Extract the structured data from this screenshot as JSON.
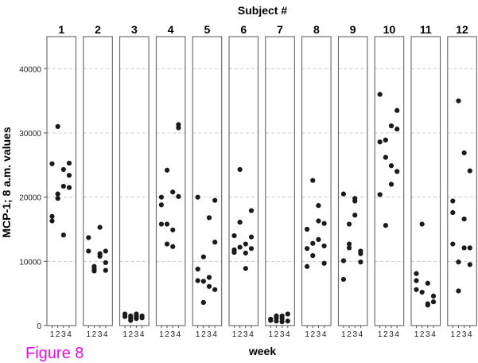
{
  "caption": "Figure 8",
  "chart_data": {
    "type": "scatter",
    "title": "Subject #",
    "xlabel": "week",
    "ylabel": "MCP-1; 8 a.m. values",
    "ylim": [
      0,
      45000
    ],
    "yticks": [
      0,
      10000,
      20000,
      30000,
      40000
    ],
    "ytick_labels": [
      "0",
      "10000",
      "20000",
      "30000",
      "40000"
    ],
    "xticks": [
      1,
      2,
      3,
      4
    ],
    "xtick_labels": [
      "1",
      "2",
      "3",
      "4"
    ],
    "grid": true,
    "facet_title": "Subject #",
    "panels": [
      {
        "name": "1",
        "points": [
          [
            1,
            25200
          ],
          [
            1,
            17000
          ],
          [
            1,
            16300
          ],
          [
            2,
            31000
          ],
          [
            2,
            20500
          ],
          [
            2,
            19800
          ],
          [
            3,
            24300
          ],
          [
            3,
            21700
          ],
          [
            3,
            14100
          ],
          [
            4,
            25300
          ],
          [
            4,
            23400
          ],
          [
            4,
            21500
          ]
        ]
      },
      {
        "name": "2",
        "points": [
          [
            1,
            13700
          ],
          [
            1,
            11600
          ],
          [
            2,
            9200
          ],
          [
            2,
            8800
          ],
          [
            2,
            8500
          ],
          [
            3,
            15300
          ],
          [
            3,
            11200
          ],
          [
            3,
            10800
          ],
          [
            4,
            11600
          ],
          [
            4,
            9800
          ],
          [
            4,
            8600
          ]
        ]
      },
      {
        "name": "3",
        "points": [
          [
            1,
            1800
          ],
          [
            1,
            1400
          ],
          [
            2,
            1200
          ],
          [
            2,
            800
          ],
          [
            2,
            1500
          ],
          [
            3,
            1800
          ],
          [
            3,
            1400
          ],
          [
            3,
            1100
          ],
          [
            4,
            1500
          ],
          [
            4,
            1200
          ]
        ]
      },
      {
        "name": "4",
        "points": [
          [
            1,
            20000
          ],
          [
            1,
            18800
          ],
          [
            1,
            15800
          ],
          [
            2,
            24200
          ],
          [
            2,
            15800
          ],
          [
            2,
            12700
          ],
          [
            3,
            20800
          ],
          [
            3,
            14900
          ],
          [
            3,
            12300
          ],
          [
            4,
            31300
          ],
          [
            4,
            30800
          ],
          [
            4,
            20100
          ]
        ]
      },
      {
        "name": "5",
        "points": [
          [
            1,
            20000
          ],
          [
            1,
            8800
          ],
          [
            1,
            7000
          ],
          [
            2,
            10700
          ],
          [
            2,
            6900
          ],
          [
            2,
            3600
          ],
          [
            3,
            16800
          ],
          [
            3,
            7500
          ],
          [
            3,
            6100
          ],
          [
            4,
            19500
          ],
          [
            4,
            13000
          ],
          [
            4,
            5600
          ]
        ]
      },
      {
        "name": "6",
        "points": [
          [
            1,
            14000
          ],
          [
            1,
            11800
          ],
          [
            1,
            11400
          ],
          [
            2,
            24300
          ],
          [
            2,
            16100
          ],
          [
            2,
            12200
          ],
          [
            3,
            12700
          ],
          [
            3,
            11300
          ],
          [
            3,
            8900
          ],
          [
            4,
            17900
          ],
          [
            4,
            13800
          ],
          [
            4,
            12000
          ]
        ]
      },
      {
        "name": "7",
        "points": [
          [
            1,
            1000
          ],
          [
            1,
            800
          ],
          [
            2,
            1200
          ],
          [
            2,
            700
          ],
          [
            2,
            1500
          ],
          [
            3,
            1500
          ],
          [
            3,
            1100
          ],
          [
            3,
            600
          ],
          [
            4,
            1800
          ],
          [
            4,
            700
          ]
        ]
      },
      {
        "name": "8",
        "points": [
          [
            1,
            15000
          ],
          [
            1,
            12000
          ],
          [
            1,
            9200
          ],
          [
            2,
            22600
          ],
          [
            2,
            12800
          ],
          [
            2,
            10900
          ],
          [
            3,
            18700
          ],
          [
            3,
            16300
          ],
          [
            3,
            13400
          ],
          [
            4,
            15900
          ],
          [
            4,
            12400
          ],
          [
            4,
            9700
          ]
        ]
      },
      {
        "name": "9",
        "points": [
          [
            1,
            20500
          ],
          [
            1,
            10100
          ],
          [
            1,
            7200
          ],
          [
            2,
            15800
          ],
          [
            2,
            12700
          ],
          [
            2,
            12100
          ],
          [
            3,
            19800
          ],
          [
            3,
            19400
          ],
          [
            3,
            17200
          ],
          [
            4,
            11600
          ],
          [
            4,
            11200
          ],
          [
            4,
            9900
          ]
        ]
      },
      {
        "name": "10",
        "points": [
          [
            1,
            36000
          ],
          [
            1,
            28600
          ],
          [
            1,
            20400
          ],
          [
            2,
            28900
          ],
          [
            2,
            26200
          ],
          [
            2,
            15600
          ],
          [
            3,
            31100
          ],
          [
            3,
            24900
          ],
          [
            3,
            22000
          ],
          [
            4,
            33500
          ],
          [
            4,
            30600
          ],
          [
            4,
            24000
          ]
        ]
      },
      {
        "name": "11",
        "points": [
          [
            1,
            8100
          ],
          [
            1,
            7000
          ],
          [
            1,
            5600
          ],
          [
            2,
            15800
          ],
          [
            2,
            5200
          ],
          [
            3,
            6600
          ],
          [
            3,
            3200
          ],
          [
            3,
            3400
          ],
          [
            4,
            4600
          ],
          [
            4,
            3700
          ]
        ]
      },
      {
        "name": "12",
        "points": [
          [
            1,
            19400
          ],
          [
            1,
            17600
          ],
          [
            1,
            12700
          ],
          [
            2,
            35000
          ],
          [
            2,
            9900
          ],
          [
            2,
            5400
          ],
          [
            3,
            26900
          ],
          [
            3,
            16600
          ],
          [
            3,
            12100
          ],
          [
            4,
            24100
          ],
          [
            4,
            12100
          ],
          [
            4,
            9500
          ]
        ]
      }
    ]
  }
}
